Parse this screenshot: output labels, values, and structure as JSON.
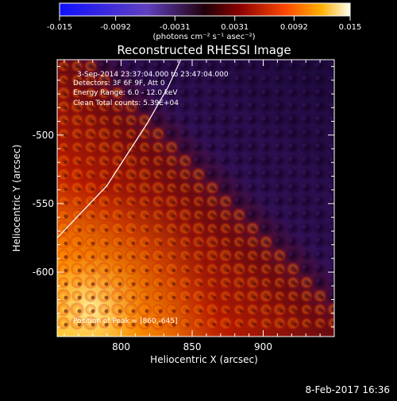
{
  "chart_data": {
    "type": "heatmap",
    "title": "Reconstructed RHESSI Image",
    "xlabel": "Heliocentric X (arcsec)",
    "ylabel": "Heliocentric Y (arcsec)",
    "xlim": [
      755,
      950
    ],
    "ylim": [
      -647,
      -445
    ],
    "xticks": [
      800,
      850,
      900
    ],
    "yticks": [
      -500,
      -550,
      -600
    ],
    "colorbar": {
      "ticks": [
        "-0.015",
        "-0.0092",
        "-0.0031",
        "0.0031",
        "0.0092",
        "0.015"
      ],
      "range": [
        -0.015,
        0.015
      ],
      "unit_label": "(photons cm⁻² s⁻¹ asec⁻²)"
    },
    "annotations": {
      "time": "3-Sep-2014 23:37:04.000 to 23:47:04.000",
      "detectors": "Detectors: 3F 6F 9F, Att 0",
      "energy": "Energy Range: 6.0 - 12.0 keV",
      "clean": "Clean    Total counts: 5.39E+04",
      "peak": "Position of Peak = [860,-645]"
    },
    "peak_position": [
      860,
      -645
    ],
    "limb_curve": [
      [
        755,
        -575
      ],
      [
        790,
        -537
      ],
      [
        818,
        -492
      ],
      [
        833,
        -465
      ],
      [
        842,
        -445
      ]
    ]
  },
  "footer": {
    "date": "8-Feb-2017 16:36"
  }
}
